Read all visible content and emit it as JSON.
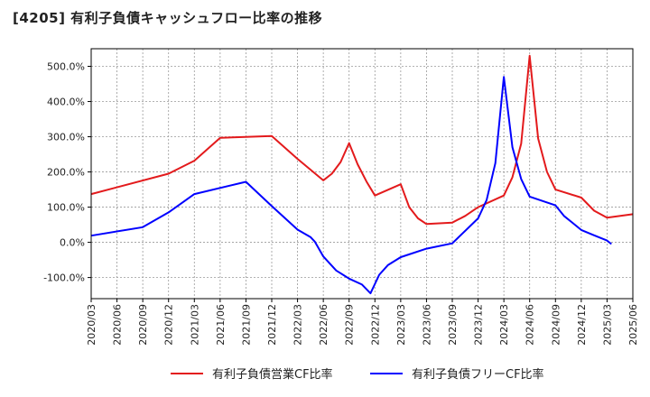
{
  "title": "[4205]  有利子負債キャッシュフロー比率の推移",
  "chart_data": {
    "type": "line",
    "y_ticks": [
      "-100.0%",
      "0.0%",
      "100.0%",
      "200.0%",
      "300.0%",
      "400.0%",
      "500.0%"
    ],
    "y_tick_values": [
      -100,
      0,
      100,
      200,
      300,
      400,
      500
    ],
    "ylim": [
      -160,
      550
    ],
    "x_ticks": [
      "2020/03",
      "2020/06",
      "2020/09",
      "2020/12",
      "2021/03",
      "2021/06",
      "2021/09",
      "2021/12",
      "2022/03",
      "2022/06",
      "2022/09",
      "2022/12",
      "2023/03",
      "2023/06",
      "2023/09",
      "2023/12",
      "2024/03",
      "2024/06",
      "2024/09",
      "2024/12",
      "2025/03",
      "2025/06"
    ],
    "grid": true,
    "legend_position": "bottom",
    "series": [
      {
        "name": "有利子負債営業CF比率",
        "color": "#e31a1c",
        "points": [
          [
            0,
            137
          ],
          [
            3,
            195
          ],
          [
            4,
            232
          ],
          [
            5,
            297
          ],
          [
            7,
            302
          ],
          [
            8,
            237
          ],
          [
            9,
            176
          ],
          [
            9.33,
            195
          ],
          [
            9.67,
            228
          ],
          [
            10,
            282
          ],
          [
            10.33,
            222
          ],
          [
            10.67,
            173
          ],
          [
            11,
            133
          ],
          [
            12,
            165
          ],
          [
            12.33,
            100
          ],
          [
            12.67,
            68
          ],
          [
            13,
            52
          ],
          [
            14,
            56
          ],
          [
            14.5,
            75
          ],
          [
            15,
            100
          ],
          [
            16,
            133
          ],
          [
            16.33,
            185
          ],
          [
            16.67,
            280
          ],
          [
            17,
            530
          ],
          [
            17.33,
            295
          ],
          [
            17.67,
            200
          ],
          [
            18,
            150
          ],
          [
            19,
            127
          ],
          [
            19.5,
            90
          ],
          [
            20,
            70
          ],
          [
            21,
            80
          ]
        ]
      },
      {
        "name": "有利子負債フリーCF比率",
        "color": "#0000ff",
        "points": [
          [
            0,
            19
          ],
          [
            2,
            43
          ],
          [
            3,
            85
          ],
          [
            4,
            137
          ],
          [
            6,
            172
          ],
          [
            7,
            103
          ],
          [
            8,
            36
          ],
          [
            8.5,
            15
          ],
          [
            8.67,
            2
          ],
          [
            9,
            -40
          ],
          [
            9.5,
            -80
          ],
          [
            10,
            -103
          ],
          [
            10.5,
            -120
          ],
          [
            10.83,
            -145
          ],
          [
            11.17,
            -92
          ],
          [
            11.5,
            -65
          ],
          [
            12,
            -42
          ],
          [
            13,
            -18
          ],
          [
            14,
            -3
          ],
          [
            15,
            68
          ],
          [
            15.33,
            120
          ],
          [
            15.67,
            225
          ],
          [
            16,
            470
          ],
          [
            16.33,
            270
          ],
          [
            16.67,
            180
          ],
          [
            17,
            130
          ],
          [
            18,
            105
          ],
          [
            18.33,
            75
          ],
          [
            18.67,
            55
          ],
          [
            19,
            35
          ],
          [
            19.5,
            20
          ],
          [
            20,
            5
          ],
          [
            20.17,
            -5
          ]
        ]
      }
    ]
  }
}
